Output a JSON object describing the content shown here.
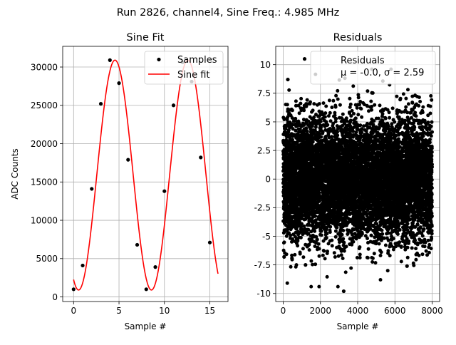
{
  "figure": {
    "suptitle": "Run 2826, channel4, Sine Freq.: 4.985 MHz"
  },
  "chart_data": [
    {
      "type": "scatter+line",
      "title": "Sine Fit",
      "xlabel": "Sample #",
      "ylabel": "ADC Counts",
      "xlim": [
        -1.2,
        17.0
      ],
      "ylim": [
        -600,
        32700
      ],
      "xticks": [
        0,
        5,
        10,
        15
      ],
      "yticks": [
        0,
        5000,
        10000,
        15000,
        20000,
        25000,
        30000
      ],
      "grid": true,
      "legend": {
        "placement": "upper right",
        "entries": [
          "Samples",
          "Sine fit"
        ]
      },
      "samples": {
        "name": "Samples",
        "x": [
          0,
          1,
          2,
          3,
          4,
          5,
          6,
          7,
          8,
          9,
          10,
          11,
          12,
          13,
          14,
          15
        ],
        "y": [
          1000,
          4100,
          14100,
          25200,
          30900,
          27900,
          17900,
          6800,
          1000,
          3900,
          13800,
          25000,
          30600,
          28100,
          18200,
          7100
        ]
      },
      "fit": {
        "name": "Sine fit",
        "model": "offset + amplitude * sin(2*pi*x/period + phase)",
        "offset": 15900,
        "amplitude": 15000,
        "period": 8.02,
        "phase": -2.0,
        "x_range": [
          0,
          15.9
        ],
        "color": "#ff0000"
      }
    },
    {
      "type": "scatter",
      "title": "Residuals",
      "xlabel": "Sample #",
      "ylabel": "",
      "xlim": [
        -400,
        8400
      ],
      "ylim": [
        -10.7,
        11.6
      ],
      "xticks": [
        0,
        2000,
        4000,
        6000,
        8000
      ],
      "yticks": [
        -10.0,
        -7.5,
        -5.0,
        -2.5,
        0.0,
        2.5,
        5.0,
        7.5,
        10.0
      ],
      "grid": true,
      "legend": {
        "placement": "upper right",
        "entries": [
          "Residuals",
          "$\\mu$ = -0.0, $\\sigma$ = 2.59"
        ]
      },
      "series": {
        "name": "Residuals",
        "mean": -0.0,
        "std": 2.59,
        "n_points": 8000,
        "notable_points": [
          {
            "x": 1150,
            "y": 10.5
          },
          {
            "x": 250,
            "y": 8.7
          },
          {
            "x": 3250,
            "y": -9.8
          },
          {
            "x": 1200,
            "y": -7.5
          },
          {
            "x": 6650,
            "y": -7.6
          },
          {
            "x": 50,
            "y": -6.8
          }
        ]
      }
    }
  ]
}
